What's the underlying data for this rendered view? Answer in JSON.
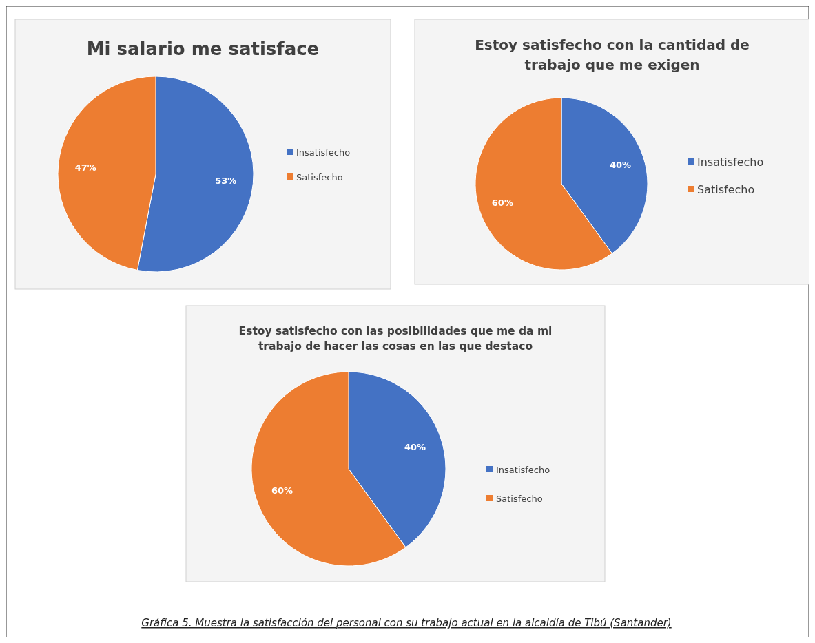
{
  "chart_data": [
    {
      "type": "pie",
      "title": "Mi salario me satisface",
      "categories": [
        "Insatisfecho",
        "Satisfecho"
      ],
      "values": [
        53,
        47
      ],
      "colors": [
        "#4472c4",
        "#ed7d31"
      ],
      "value_labels": [
        "53%",
        "47%"
      ],
      "legend": "right"
    },
    {
      "type": "pie",
      "title": "Estoy satisfecho con la cantidad de trabajo que me exigen",
      "categories": [
        "Insatisfecho",
        "Satisfecho"
      ],
      "values": [
        40,
        60
      ],
      "colors": [
        "#4472c4",
        "#ed7d31"
      ],
      "value_labels": [
        "40%",
        "60%"
      ],
      "legend": "right"
    },
    {
      "type": "pie",
      "title": "Estoy satisfecho con las posibilidades que me da mi trabajo de hacer las cosas en las que destaco",
      "categories": [
        "Insatisfecho",
        "Satisfecho"
      ],
      "values": [
        40,
        60
      ],
      "colors": [
        "#4472c4",
        "#ed7d31"
      ],
      "value_labels": [
        "40%",
        "60%"
      ],
      "legend": "right",
      "annotations": [
        "Gráfica 5. Muestra la satisfacción del personal con su trabajo actual en la alcaldía de Tibú (Santander)"
      ]
    }
  ]
}
